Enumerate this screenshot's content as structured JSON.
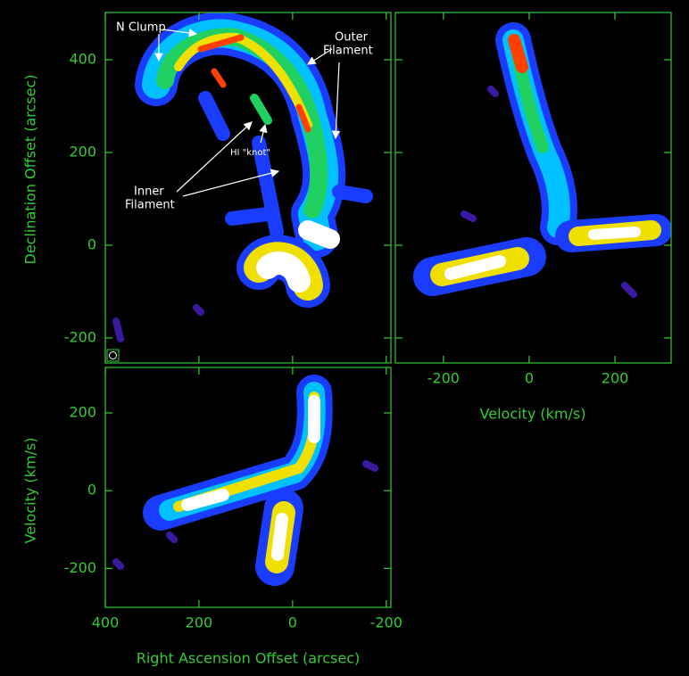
{
  "dec_axis": {
    "label": "Declination Offset (arcsec)",
    "lim": [
      -254,
      502
    ],
    "ticks": [
      -200,
      0,
      200,
      400
    ]
  },
  "ra_axis": {
    "label": "Right Ascension Offset (arcsec)",
    "lim": [
      400,
      -210
    ],
    "ticks": [
      400,
      200,
      0,
      -200
    ]
  },
  "velocity_x_axis": {
    "label": "Velocity (km/s)",
    "lim": [
      -312,
      331
    ],
    "ticks": [
      -200,
      0,
      200
    ]
  },
  "velocity_y_axis": {
    "label": "Velocity (km/s)",
    "lim": [
      -300,
      317
    ],
    "ticks": [
      -200,
      0,
      200
    ]
  },
  "annotations": {
    "n_clump": "N Clump",
    "outer_filament": [
      "Outer",
      "Filament"
    ],
    "hi_knot": "HI \"knot\"",
    "inner_filament": [
      "Inner",
      "Filament"
    ]
  }
}
